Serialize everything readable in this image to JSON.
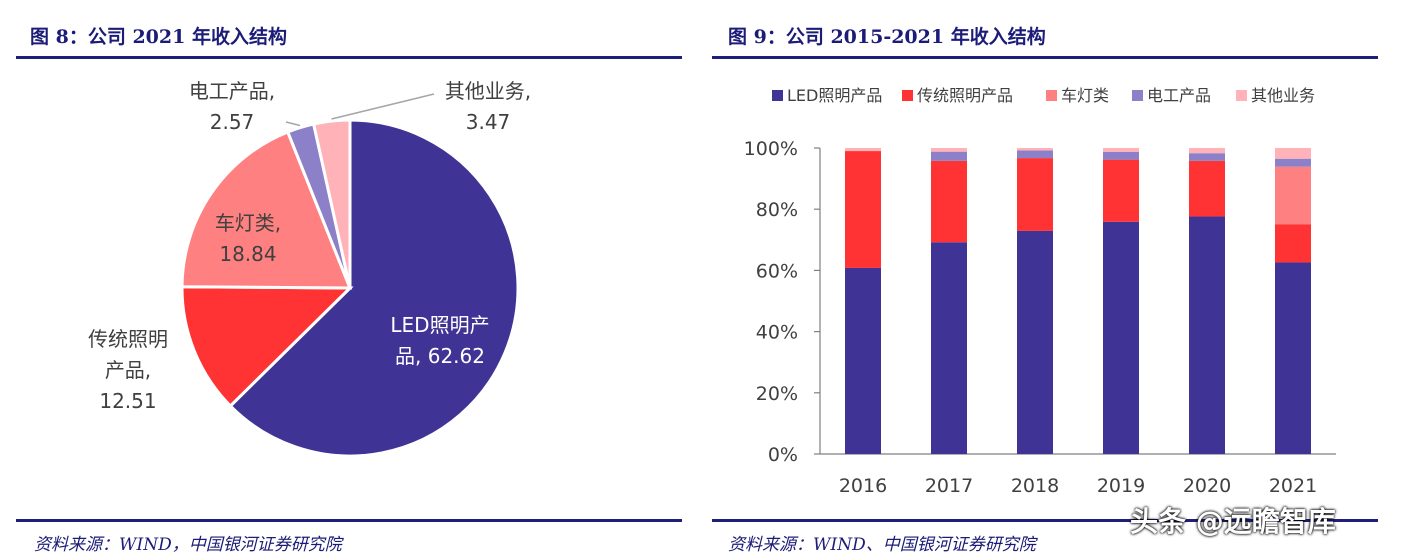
{
  "left": {
    "title": "图 8：公司 2021 年收入结构",
    "source": "资料来源：WIND，中国银河证券研究院"
  },
  "right": {
    "title": "图 9：公司 2015-2021 年收入结构",
    "source": "资料来源：WIND、中国银河证券研究院"
  },
  "watermark": "头条 @远瞻智库",
  "chart_data": [
    {
      "type": "pie",
      "title": "图 8：公司 2021 年收入结构",
      "slices": [
        {
          "name": "LED照明产品",
          "value": 62.62,
          "color": "#3f3496",
          "label_lines": [
            "LED照明产",
            "品, 62.62"
          ]
        },
        {
          "name": "传统照明产品",
          "value": 12.51,
          "color": "#ff3333",
          "label_lines": [
            "传统照明",
            "产品,",
            "12.51"
          ]
        },
        {
          "name": "车灯类",
          "value": 18.84,
          "color": "#ff8080",
          "label_lines": [
            "车灯类,",
            "18.84"
          ]
        },
        {
          "name": "电工产品",
          "value": 2.57,
          "color": "#8c80c8",
          "label_lines": [
            "电工产品,",
            "2.57"
          ]
        },
        {
          "name": "其他业务",
          "value": 3.47,
          "color": "#ffb3b8",
          "label_lines": [
            "其他业务,",
            "3.47"
          ]
        }
      ]
    },
    {
      "type": "bar",
      "stacked": true,
      "title": "图 9：公司 2015-2021 年收入结构",
      "categories": [
        "2016",
        "2017",
        "2018",
        "2019",
        "2020",
        "2021"
      ],
      "ylim": [
        0,
        100
      ],
      "yticks": [
        "0%",
        "20%",
        "40%",
        "60%",
        "80%",
        "100%"
      ],
      "legend_position": "top",
      "series": [
        {
          "name": "LED照明产品",
          "color": "#3f3496",
          "values": [
            60.8,
            69.2,
            72.9,
            75.9,
            77.6,
            62.6
          ]
        },
        {
          "name": "传统照明产品",
          "color": "#ff3333",
          "values": [
            38.2,
            26.6,
            23.8,
            20.3,
            18.2,
            12.5
          ]
        },
        {
          "name": "车灯类",
          "color": "#ff8080",
          "values": [
            0,
            0,
            0,
            0,
            0,
            18.8
          ]
        },
        {
          "name": "电工产品",
          "color": "#8c80c8",
          "values": [
            0,
            3.0,
            2.5,
            2.5,
            2.5,
            2.6
          ]
        },
        {
          "name": "其他业务",
          "color": "#ffb3b8",
          "values": [
            1.0,
            1.2,
            0.8,
            1.3,
            1.7,
            3.5
          ]
        }
      ]
    }
  ]
}
